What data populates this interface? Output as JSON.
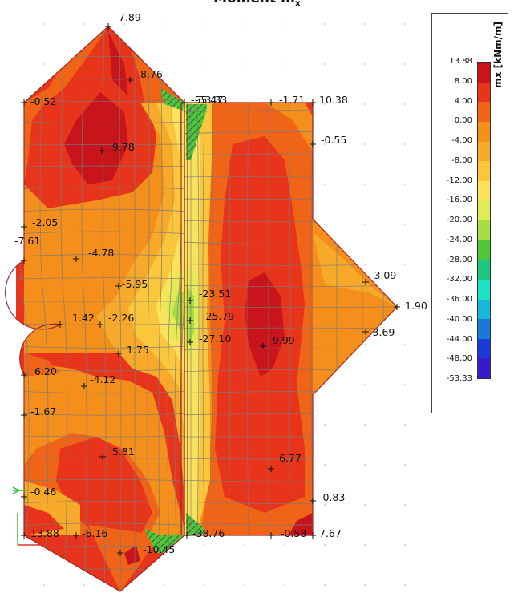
{
  "title": "Moment m",
  "title_subscript": "x",
  "legend": {
    "unit": "mx [kNm/m]",
    "levels": [
      "13.88",
      "8.00",
      "4.00",
      "0.00",
      "-4.00",
      "-8.00",
      "-12.00",
      "-16.00",
      "-20.00",
      "-24.00",
      "-28.00",
      "-32.00",
      "-36.00",
      "-40.00",
      "-44.00",
      "-48.00",
      "-53.33"
    ],
    "colors": [
      "#c8141b",
      "#e8341a",
      "#f06418",
      "#f58f1c",
      "#f7aa2a",
      "#f9c63c",
      "#fae35c",
      "#e2ea55",
      "#a8de45",
      "#4ec83a",
      "#1ec67e",
      "#1ee2c8",
      "#18b6d8",
      "#1a78d8",
      "#1a3ad8",
      "#3a1ac8"
    ]
  },
  "value_labels": [
    {
      "text": "7.89"
    },
    {
      "text": "8.76"
    },
    {
      "text": "-0.52"
    },
    {
      "text": "9.78"
    },
    {
      "text": "-55.47"
    },
    {
      "text": "-53.33"
    },
    {
      "text": "-1.71"
    },
    {
      "text": "10.38"
    },
    {
      "text": "-0.55"
    },
    {
      "text": "-2.05"
    },
    {
      "text": "-7.61"
    },
    {
      "text": "-4.78"
    },
    {
      "text": "-5.95"
    },
    {
      "text": "-23.51"
    },
    {
      "text": "-25.79"
    },
    {
      "text": "-27.10"
    },
    {
      "text": "-3.09"
    },
    {
      "text": "1.90"
    },
    {
      "text": "-3.69"
    },
    {
      "text": "9.99"
    },
    {
      "text": "1.42"
    },
    {
      "text": "-2.26"
    },
    {
      "text": "1.75"
    },
    {
      "text": "6.20"
    },
    {
      "text": "-4.12"
    },
    {
      "text": "-1.67"
    },
    {
      "text": "5.81"
    },
    {
      "text": "6.77"
    },
    {
      "text": "-0.46"
    },
    {
      "text": "-0.83"
    },
    {
      "text": "13.88"
    },
    {
      "text": "-6.16"
    },
    {
      "text": "-10.45"
    },
    {
      "text": "-38.76"
    },
    {
      "text": "-0.58"
    },
    {
      "text": "7.67"
    }
  ]
}
